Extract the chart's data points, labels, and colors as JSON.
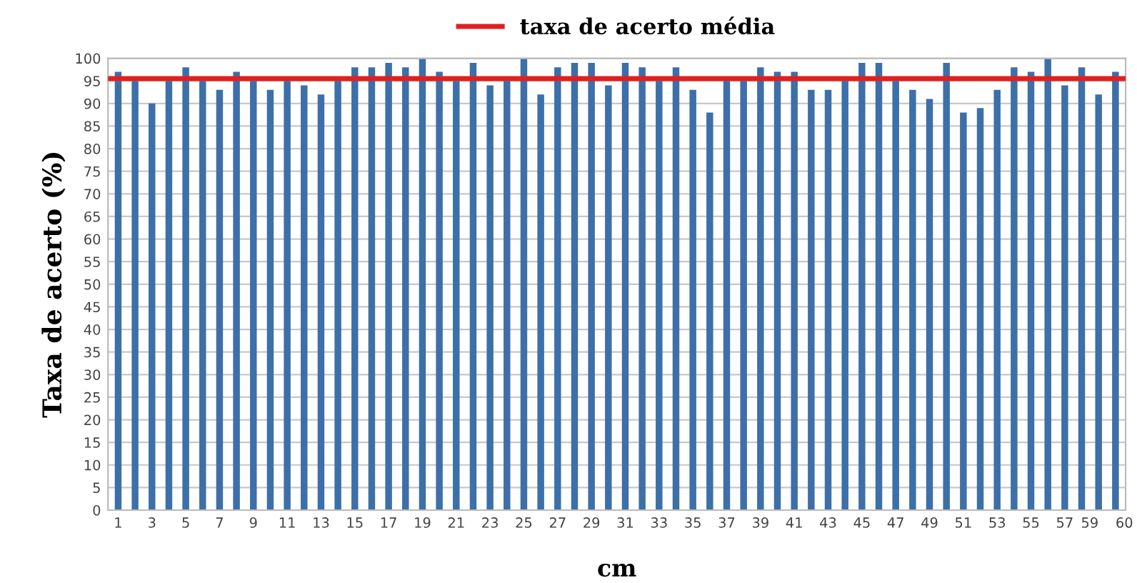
{
  "chart_data": {
    "type": "bar",
    "xlabel": "cm",
    "ylabel": "Taxa de acerto (%)",
    "categories": [
      "1",
      null,
      "3",
      null,
      "5",
      null,
      "7",
      null,
      "9",
      null,
      "11",
      null,
      "13",
      null,
      "15",
      null,
      "17",
      null,
      "19",
      null,
      "21",
      null,
      "23",
      null,
      "25",
      null,
      "27",
      null,
      "29",
      null,
      "31",
      null,
      "33",
      null,
      "35",
      null,
      "37",
      null,
      "39",
      null,
      "41",
      null,
      "43",
      null,
      "45",
      null,
      "47",
      null,
      "49",
      null,
      "51",
      null,
      "53",
      null,
      "55",
      null,
      "57",
      null,
      "59",
      "60"
    ],
    "values": [
      97,
      95,
      90,
      95,
      98,
      95,
      93,
      97,
      95,
      93,
      95,
      94,
      92,
      95,
      98,
      98,
      99,
      98,
      100,
      97,
      95,
      99,
      94,
      95,
      100,
      92,
      98,
      99,
      99,
      94,
      99,
      98,
      95,
      98,
      93,
      88,
      95,
      95,
      98,
      97,
      97,
      93,
      93,
      95,
      99,
      99,
      95,
      93,
      91,
      99,
      88,
      89,
      93,
      98,
      97,
      100,
      94,
      98,
      92,
      97
    ],
    "color": "#3d6fa8",
    "ylim": [
      0,
      100
    ],
    "yticks": [
      0,
      5,
      10,
      15,
      20,
      25,
      30,
      35,
      40,
      45,
      50,
      55,
      60,
      65,
      70,
      75,
      80,
      85,
      90,
      95,
      100
    ],
    "grid": "y",
    "legend": "top",
    "ref_lines": [
      {
        "axis": "y",
        "value": 95.5,
        "label": "taxa de acerto média",
        "color": "#e02020",
        "line_style": "solid"
      }
    ]
  }
}
